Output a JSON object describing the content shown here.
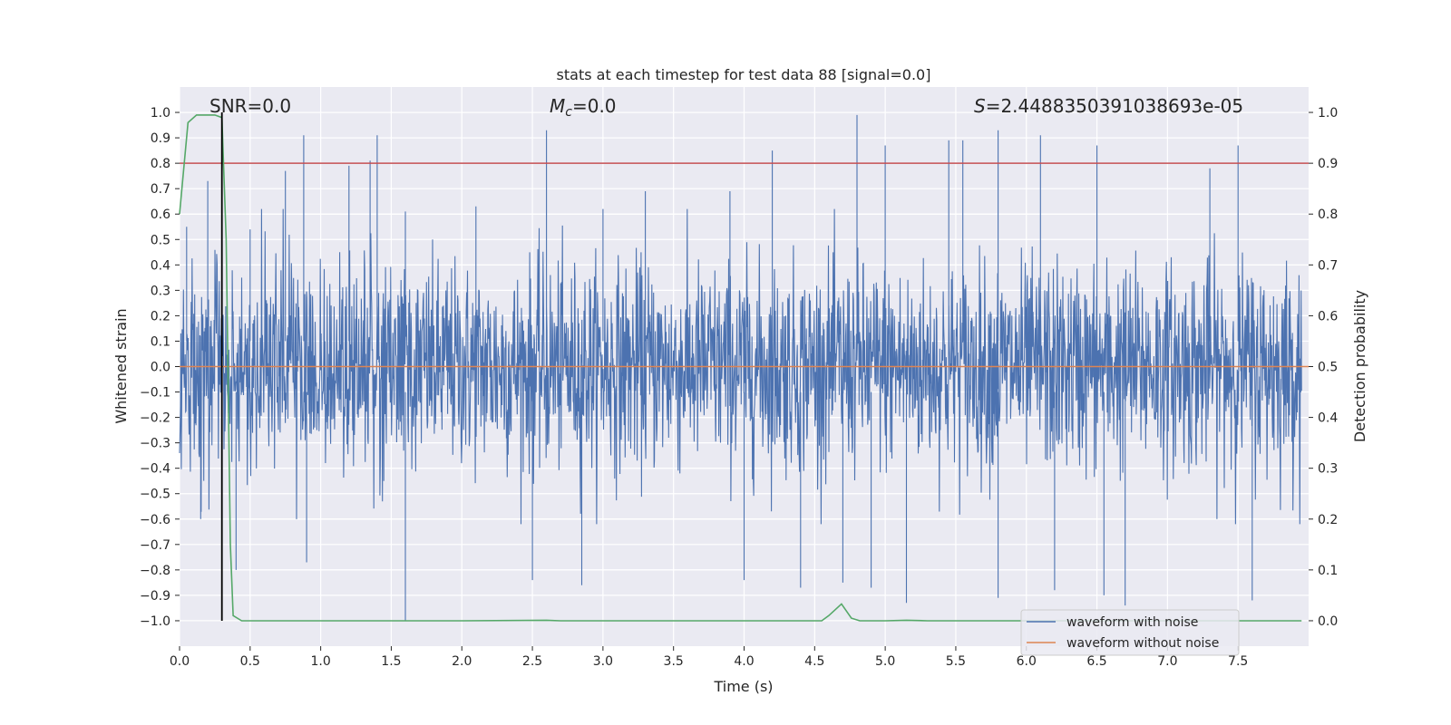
{
  "chart_data": {
    "type": "line",
    "title": "stats at each timestep for test data 88 [signal=0.0]",
    "xlabel": "Time (s)",
    "ylabel": "Whitened strain",
    "ylabel_right": "Detection probability",
    "xlim": [
      0.0,
      8.0
    ],
    "ylim": [
      -1.1,
      1.1
    ],
    "ylim_right": [
      -0.05,
      1.05
    ],
    "x_ticks": [
      "0.0",
      "0.5",
      "1.0",
      "1.5",
      "2.0",
      "2.5",
      "3.0",
      "3.5",
      "4.0",
      "4.5",
      "5.0",
      "5.5",
      "6.0",
      "6.5",
      "7.0",
      "7.5"
    ],
    "y_ticks": [
      "1.0",
      "0.9",
      "0.8",
      "0.7",
      "0.6",
      "0.5",
      "0.4",
      "0.3",
      "0.2",
      "0.1",
      "0.0",
      "-0.1",
      "-0.2",
      "-0.3",
      "-0.4",
      "-0.5",
      "-0.6",
      "-0.7",
      "-0.8",
      "-0.9",
      "-1.0"
    ],
    "y_ticks_right": [
      "1.0",
      "0.9",
      "0.8",
      "0.7",
      "0.6",
      "0.5",
      "0.4",
      "0.3",
      "0.2",
      "0.1",
      "0.0"
    ],
    "grid": true,
    "legend_position": "lower-right",
    "annotations": {
      "snr": "SNR=0.0",
      "mc": "=0.0",
      "mc_symbol": "M",
      "mc_sub": "c",
      "s": "=2.4488350391038693e-05",
      "s_symbol": "S"
    },
    "series": [
      {
        "name": "waveform with noise",
        "color": "#4c72b0",
        "axis": "left",
        "description": "dense noisy whitened strain, roughly spanning -0.6 to 0.6 with spikes near ±0.9",
        "envelope_peaks": [
          [
            0.05,
            0.55
          ],
          [
            0.2,
            0.73
          ],
          [
            0.3,
            0.75
          ],
          [
            0.5,
            0.54
          ],
          [
            0.75,
            0.77
          ],
          [
            0.88,
            0.91
          ],
          [
            1.2,
            0.79
          ],
          [
            1.35,
            0.81
          ],
          [
            1.4,
            0.91
          ],
          [
            1.6,
            0.61
          ],
          [
            2.1,
            0.63
          ],
          [
            2.6,
            0.93
          ],
          [
            3.0,
            0.62
          ],
          [
            3.3,
            0.69
          ],
          [
            3.9,
            0.69
          ],
          [
            4.2,
            0.85
          ],
          [
            4.8,
            0.99
          ],
          [
            5.0,
            0.87
          ],
          [
            5.45,
            0.89
          ],
          [
            5.55,
            0.89
          ],
          [
            5.8,
            0.93
          ],
          [
            6.1,
            0.91
          ],
          [
            6.5,
            0.87
          ],
          [
            7.3,
            0.78
          ],
          [
            7.5,
            0.87
          ]
        ],
        "envelope_troughs": [
          [
            0.15,
            -0.6
          ],
          [
            0.4,
            -0.8
          ],
          [
            0.9,
            -0.77
          ],
          [
            1.6,
            -0.82
          ],
          [
            1.6,
            -1.0
          ],
          [
            2.5,
            -0.84
          ],
          [
            2.85,
            -0.86
          ],
          [
            4.0,
            -0.84
          ],
          [
            4.4,
            -0.87
          ],
          [
            4.7,
            -0.85
          ],
          [
            4.9,
            -0.87
          ],
          [
            5.15,
            -0.93
          ],
          [
            5.8,
            -0.91
          ],
          [
            6.2,
            -0.88
          ],
          [
            6.55,
            -0.9
          ],
          [
            6.7,
            -0.94
          ],
          [
            7.6,
            -0.92
          ]
        ]
      },
      {
        "name": "waveform without noise",
        "color": "#dd8452",
        "axis": "left",
        "x": [
          0.0,
          8.0
        ],
        "y": [
          0.0,
          0.0
        ]
      },
      {
        "name": "",
        "color": "#55a868",
        "axis": "right",
        "x": [
          0.0,
          0.06,
          0.12,
          0.2,
          0.25,
          0.3,
          0.33,
          0.36,
          0.38,
          0.44,
          0.6,
          1.0,
          2.0,
          2.6,
          2.7,
          3.0,
          4.0,
          4.5,
          4.55,
          4.6,
          4.69,
          4.76,
          4.82,
          5.0,
          5.15,
          5.3,
          6.0,
          7.0,
          7.95
        ],
        "y": [
          0.8,
          0.98,
          0.995,
          0.995,
          0.995,
          0.99,
          0.75,
          0.15,
          0.01,
          0.0,
          0.0,
          0.0,
          0.0,
          0.001,
          0.0,
          0.0,
          0.0,
          0.0,
          0.0,
          0.01,
          0.033,
          0.005,
          0.0,
          0.0,
          0.001,
          0.0,
          0.0,
          0.0,
          0.0
        ]
      }
    ],
    "hlines": [
      {
        "axis": "right",
        "y": 0.9,
        "color": "#c44e52"
      }
    ],
    "vlines": [
      {
        "x": 0.3,
        "y_from": -1.0,
        "y_to": 1.0,
        "color": "#000000"
      }
    ]
  }
}
